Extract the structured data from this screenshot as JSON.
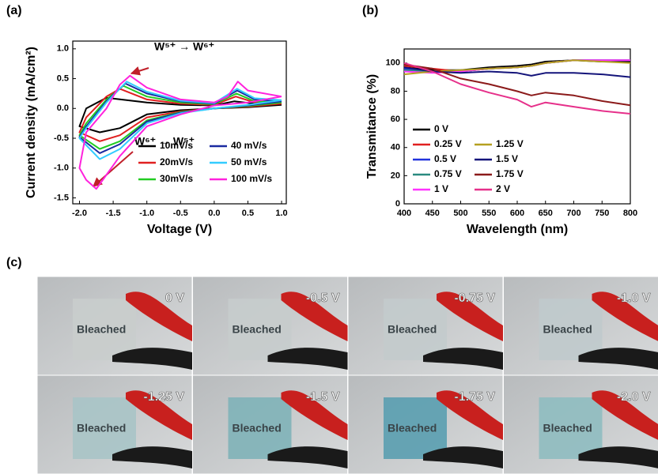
{
  "chart_data": [
    {
      "type": "line",
      "panel_label": "(a)",
      "xlabel": "Voltage (V)",
      "ylabel": "Current density (mA/cm²)",
      "xlim": [
        -2.1,
        1.07
      ],
      "ylim": [
        -1.6,
        1.13
      ],
      "xticks": [
        {
          "value": -2,
          "label": "-2.0"
        },
        {
          "value": -1.5,
          "label": "-1.5"
        },
        {
          "value": -1,
          "label": "-1.0"
        },
        {
          "value": -0.5,
          "label": "-0.5"
        },
        {
          "value": 0,
          "label": "0.0"
        },
        {
          "value": 0.5,
          "label": "0.5"
        },
        {
          "value": 1,
          "label": "1.0"
        }
      ],
      "yticks": [
        {
          "value": 1,
          "label": "1.0"
        },
        {
          "value": 0.5,
          "label": "0.5"
        },
        {
          "value": 0,
          "label": "0.0"
        },
        {
          "value": -0.5,
          "label": "-0.5"
        },
        {
          "value": -1,
          "label": "-1.0"
        },
        {
          "value": -1.5,
          "label": "-1.5"
        }
      ],
      "annotations": [
        "W⁵⁺ → W⁶⁺",
        "W⁶⁺ → W⁵⁺"
      ],
      "series": [
        {
          "name": "10mV/s",
          "color": "#000000",
          "x": [
            1.0,
            0.5,
            0.0,
            -0.5,
            -1.0,
            -1.4,
            -1.7,
            -2.0,
            -1.9,
            -1.6,
            -1.3,
            -1.0,
            -0.5,
            0.0,
            0.3,
            0.6,
            1.0
          ],
          "values": [
            0.06,
            0.02,
            0.0,
            -0.03,
            -0.1,
            -0.33,
            -0.4,
            -0.3,
            0.0,
            0.18,
            0.14,
            0.1,
            0.06,
            0.05,
            0.12,
            0.08,
            0.06
          ]
        },
        {
          "name": "20mV/s",
          "color": "#e02020",
          "x": [
            1.0,
            0.5,
            0.0,
            -0.5,
            -1.0,
            -1.4,
            -1.7,
            -2.0,
            -1.9,
            -1.6,
            -1.4,
            -1.0,
            -0.5,
            0.0,
            0.32,
            0.6,
            1.0
          ],
          "values": [
            0.08,
            0.03,
            0.0,
            -0.05,
            -0.15,
            -0.45,
            -0.55,
            -0.4,
            -0.15,
            0.2,
            0.33,
            0.15,
            0.08,
            0.06,
            0.2,
            0.1,
            0.08
          ]
        },
        {
          "name": "30mV/s",
          "color": "#22cc22",
          "x": [
            1.0,
            0.5,
            0.0,
            -0.5,
            -1.0,
            -1.4,
            -1.7,
            -2.0,
            -1.9,
            -1.6,
            -1.35,
            -1.0,
            -0.5,
            0.0,
            0.33,
            0.6,
            1.0
          ],
          "values": [
            0.1,
            0.04,
            0.0,
            -0.06,
            -0.2,
            -0.55,
            -0.68,
            -0.45,
            -0.25,
            0.15,
            0.38,
            0.2,
            0.1,
            0.07,
            0.25,
            0.12,
            0.1
          ]
        },
        {
          "name": "40 mV/s",
          "color": "#1a2aa0",
          "x": [
            1.0,
            0.5,
            0.0,
            -0.5,
            -1.0,
            -1.4,
            -1.7,
            -2.0,
            -1.9,
            -1.6,
            -1.32,
            -1.0,
            -0.5,
            0.0,
            0.34,
            0.6,
            1.0
          ],
          "values": [
            0.12,
            0.05,
            0.0,
            -0.07,
            -0.22,
            -0.6,
            -0.75,
            -0.48,
            -0.3,
            0.12,
            0.42,
            0.25,
            0.12,
            0.08,
            0.3,
            0.15,
            0.12
          ]
        },
        {
          "name": "50 mV/s",
          "color": "#33ccff",
          "x": [
            1.0,
            0.5,
            0.0,
            -0.5,
            -1.0,
            -1.4,
            -1.7,
            -2.0,
            -1.9,
            -1.6,
            -1.3,
            -1.0,
            -0.5,
            0.0,
            0.34,
            0.6,
            1.0
          ],
          "values": [
            0.14,
            0.06,
            0.0,
            -0.08,
            -0.25,
            -0.68,
            -0.85,
            -0.5,
            -0.33,
            0.1,
            0.45,
            0.28,
            0.13,
            0.09,
            0.33,
            0.17,
            0.14
          ]
        },
        {
          "name": "100 mV/s",
          "color": "#ff22dd",
          "x": [
            1.0,
            0.5,
            0.0,
            -0.5,
            -1.0,
            -1.4,
            -1.75,
            -1.9,
            -2.0,
            -1.9,
            -1.6,
            -1.4,
            -1.25,
            -1.0,
            -0.5,
            0.0,
            0.2,
            0.35,
            0.5,
            1.0
          ],
          "values": [
            0.2,
            0.1,
            0.05,
            -0.1,
            -0.3,
            -0.8,
            -1.35,
            -1.2,
            -1.0,
            -0.4,
            0.0,
            0.4,
            0.55,
            0.35,
            0.15,
            0.1,
            0.2,
            0.45,
            0.3,
            0.2
          ]
        }
      ]
    },
    {
      "type": "line",
      "panel_label": "(b)",
      "xlabel": "Wavelength (nm)",
      "ylabel": "Transmitance (%)",
      "xlim": [
        400,
        800
      ],
      "ylim": [
        0,
        110
      ],
      "xticks": [
        400,
        450,
        500,
        550,
        600,
        650,
        700,
        750,
        800
      ],
      "yticks": [
        0,
        20,
        40,
        60,
        80,
        100
      ],
      "x": [
        400,
        450,
        500,
        550,
        600,
        625,
        650,
        700,
        750,
        800
      ],
      "series": [
        {
          "name": "0 V",
          "color": "#000000",
          "values": [
            97,
            95,
            95,
            97,
            98,
            99,
            101,
            102,
            101,
            101
          ]
        },
        {
          "name": "0.25 V",
          "color": "#e02020",
          "values": [
            98,
            96,
            94,
            96,
            97,
            98,
            100,
            102,
            102,
            102
          ]
        },
        {
          "name": "0.5 V",
          "color": "#2233dd",
          "values": [
            96,
            94,
            94,
            96,
            97,
            98,
            100,
            102,
            102,
            102
          ]
        },
        {
          "name": "0.75 V",
          "color": "#2a8a80",
          "values": [
            95,
            94,
            94,
            96,
            97,
            98,
            100,
            102,
            102,
            102
          ]
        },
        {
          "name": "1 V",
          "color": "#ff33ff",
          "values": [
            94,
            93,
            94,
            96,
            97,
            98,
            100,
            102,
            102,
            102
          ]
        },
        {
          "name": "1.25 V",
          "color": "#b5a020",
          "values": [
            92,
            94,
            95,
            96,
            97,
            98,
            100,
            102,
            101,
            100
          ]
        },
        {
          "name": "1.5 V",
          "color": "#14147a",
          "values": [
            97,
            94,
            93,
            94,
            93,
            91,
            93,
            93,
            92,
            90
          ]
        },
        {
          "name": "1.75 V",
          "color": "#8b1a1a",
          "values": [
            99,
            96,
            89,
            85,
            80,
            77,
            79,
            77,
            73,
            70
          ]
        },
        {
          "name": "2 V",
          "color": "#e6308a",
          "values": [
            100,
            94,
            85,
            79,
            74,
            69,
            72,
            69,
            66,
            64
          ]
        }
      ]
    }
  ],
  "photos": {
    "panel_label": "(c)",
    "items": [
      {
        "voltage": "0 V",
        "label": "Bleached",
        "film_color": "#c9cdcc"
      },
      {
        "voltage": "-0.5 V",
        "label": "Bleached",
        "film_color": "#c6cccc"
      },
      {
        "voltage": "-0.75 V",
        "label": "Bleached",
        "film_color": "#c3cbcc"
      },
      {
        "voltage": "-1.0 V",
        "label": "Bleached",
        "film_color": "#c0cacc"
      },
      {
        "voltage": "-1.25 V",
        "label": "Bleached",
        "film_color": "#a9c4c6"
      },
      {
        "voltage": "-1.5 V",
        "label": "Bleached",
        "film_color": "#7fb2b8"
      },
      {
        "voltage": "-1.75 V",
        "label": "Bleached",
        "film_color": "#5a9fb0"
      },
      {
        "voltage": "-2.0 V",
        "label": "Bleached",
        "film_color": "#8fbcc0"
      }
    ]
  }
}
